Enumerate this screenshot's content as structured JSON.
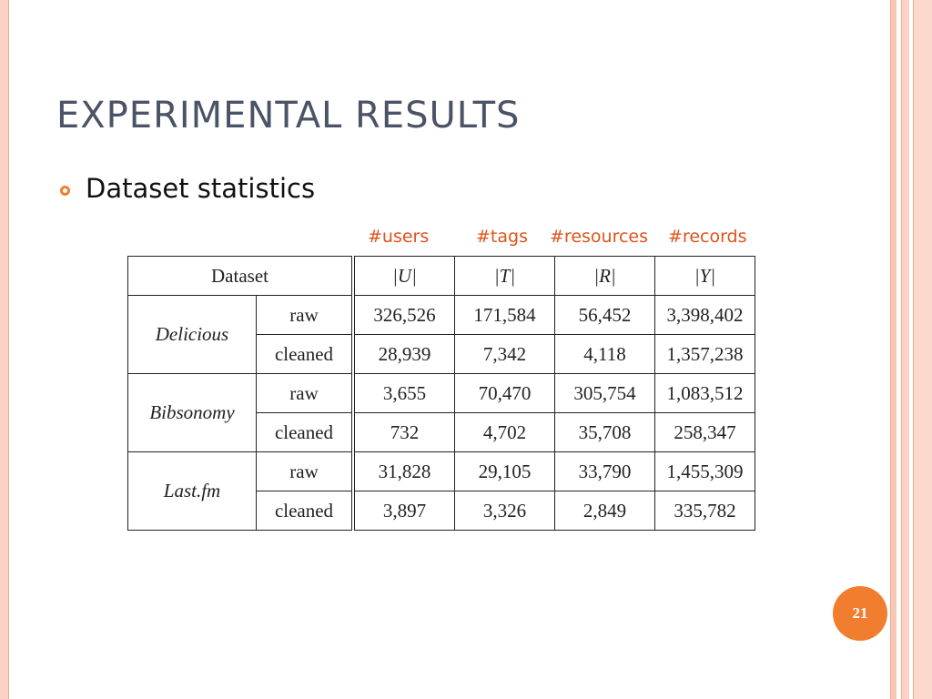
{
  "slide": {
    "title": "EXPERIMENTAL RESULTS",
    "bullet": "Dataset statistics",
    "page_number": "21",
    "accent_color": "#f07e2e"
  },
  "annotations": [
    "#users",
    "#tags",
    "#resources",
    "#records"
  ],
  "table": {
    "header": {
      "dataset": "Dataset",
      "cols": [
        "|U|",
        "|T|",
        "|R|",
        "|Y|"
      ]
    },
    "groups": [
      {
        "name": "Delicious",
        "rows": [
          {
            "variant": "raw",
            "values": [
              "326,526",
              "171,584",
              "56,452",
              "3,398,402"
            ]
          },
          {
            "variant": "cleaned",
            "values": [
              "28,939",
              "7,342",
              "4,118",
              "1,357,238"
            ]
          }
        ]
      },
      {
        "name": "Bibsonomy",
        "rows": [
          {
            "variant": "raw",
            "values": [
              "3,655",
              "70,470",
              "305,754",
              "1,083,512"
            ]
          },
          {
            "variant": "cleaned",
            "values": [
              "732",
              "4,702",
              "35,708",
              "258,347"
            ]
          }
        ]
      },
      {
        "name": "Last.fm",
        "rows": [
          {
            "variant": "raw",
            "values": [
              "31,828",
              "29,105",
              "33,790",
              "1,455,309"
            ]
          },
          {
            "variant": "cleaned",
            "values": [
              "3,897",
              "3,326",
              "2,849",
              "335,782"
            ]
          }
        ]
      }
    ]
  }
}
